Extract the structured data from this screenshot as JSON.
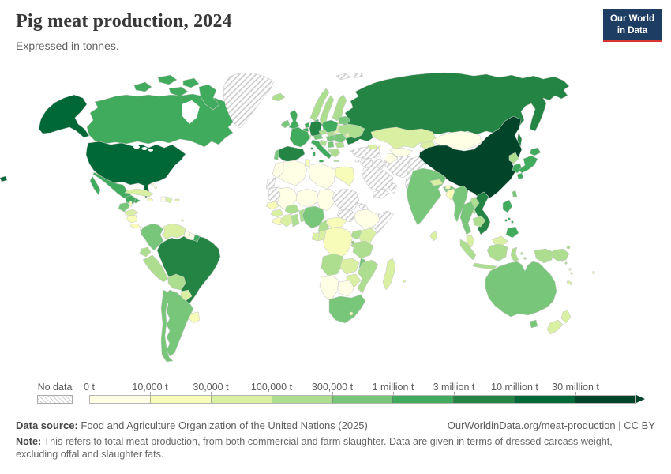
{
  "header": {
    "title": "Pig meat production, 2024",
    "subtitle": "Expressed in tonnes."
  },
  "logo": {
    "line1": "Our World",
    "line2": "in Data",
    "bg_color": "#1d3d63",
    "underline_color": "#d8352e"
  },
  "legend": {
    "no_data_label": "No data"
  },
  "footer": {
    "source_prefix": "Data source:",
    "source_text": "Food and Agriculture Organization of the United Nations (2025)",
    "link_text": "OurWorldinData.org/meat-production | CC BY",
    "note_prefix": "Note:",
    "note_text": "This refers to total meat production, from both commercial and farm slaughter. Data are given in terms of dressed carcass weight, excluding offal and slaughter fats."
  },
  "chart_data": {
    "type": "choropleth",
    "title": "Pig meat production, 2024",
    "unit": "tonnes",
    "bin_edges": [
      "0 t",
      "10,000 t",
      "30,000 t",
      "100,000 t",
      "300,000 t",
      "1 million t",
      "3 million t",
      "10 million t",
      "30 million t"
    ],
    "colors": [
      "#ffffe5",
      "#f7fcb9",
      "#d9f0a3",
      "#addd8e",
      "#78c679",
      "#41ab5d",
      "#238443",
      "#006837",
      "#004529"
    ],
    "no_data_key": "nd",
    "countries": {
      "united-states": 7,
      "canada": 5,
      "greenland": "nd",
      "mexico": 5,
      "guatemala": 4,
      "belize": 1,
      "honduras": 2,
      "nicaragua": 1,
      "costa-rica": 1,
      "panama": 1,
      "cuba": 2,
      "jamaica": 1,
      "haiti": 0,
      "dominican-republic": 2,
      "puerto-rico": 2,
      "bahamas": 1,
      "trinidad-and-tobago": 1,
      "colombia": 4,
      "venezuela": 2,
      "guyana": 0,
      "suriname": 0,
      "french-guiana": 5,
      "ecuador": 3,
      "peru": 3,
      "brazil": 6,
      "bolivia": 3,
      "paraguay": 2,
      "uruguay": 1,
      "argentina": 4,
      "chile": 4,
      "iceland": 3,
      "ireland": 4,
      "united-kingdom": 5,
      "portugal": 4,
      "spain": 6,
      "france": 5,
      "belgium": 5,
      "netherlands": 5,
      "germany": 6,
      "denmark": 5,
      "norway": 3,
      "sweden": 3,
      "finland": 3,
      "estonia": 2,
      "latvia": 2,
      "lithuania": 2,
      "poland": 5,
      "czechia": 3,
      "slovakia": 3,
      "austria": 4,
      "switzerland": 3,
      "hungary": 4,
      "romania": 4,
      "serbia": 4,
      "croatia": 3,
      "albania": 3,
      "greece": 3,
      "bulgaria": 3,
      "moldova": 2,
      "belarus": 4,
      "ukraine": 3,
      "italy": 5,
      "russia": 6,
      "turkey": "nd",
      "cyprus": "nd",
      "syria": "nd",
      "iraq": "nd",
      "saudi-arabia": "nd",
      "yemen": "nd",
      "oman": "nd",
      "iran": "nd",
      "afghanistan": "nd",
      "pakistan": "nd",
      "georgia": 2,
      "azerbaijan": 1,
      "kazakhstan": 2,
      "uzbekistan": 0,
      "turkmenistan": 0,
      "kyrgyzstan": 2,
      "tajikistan": 0,
      "china": 8,
      "mongolia": 0,
      "north-korea": 3,
      "south-korea": 5,
      "japan": 5,
      "taiwan": 4,
      "india": 4,
      "nepal": 2,
      "bhutan": 1,
      "bangladesh": 1,
      "sri-lanka": 2,
      "myanmar": 4,
      "thailand": 4,
      "laos": 3,
      "cambodia": 3,
      "vietnam": 6,
      "malaysia": 2,
      "indonesia": 3,
      "philippines": 5,
      "timor-leste": 2,
      "papua-new-guinea": 3,
      "solomon-islands": 3,
      "vanuatu": 2,
      "new-caledonia": 2,
      "fiji": 1,
      "australia": 4,
      "new-zealand": 2,
      "morocco": 0,
      "western-sahara": "nd",
      "algeria": 0,
      "tunisia": 1,
      "libya": 0,
      "egypt": 1,
      "mauritania": "nd",
      "mali": 0,
      "niger": 0,
      "chad": 0,
      "sudan": "nd",
      "south-sudan": "nd",
      "eritrea": "nd",
      "ethiopia": 0,
      "somalia": "nd",
      "senegal": 1,
      "guinea": 2,
      "sierra-leone": 1,
      "cote-divoire": 2,
      "ghana": 3,
      "burkina-faso": 3,
      "togo-benin": 3,
      "nigeria": 4,
      "cameroon": 3,
      "central-african-republic": 1,
      "dr-congo": 1,
      "congo": 2,
      "gabon": 2,
      "uganda": 3,
      "kenya": 2,
      "rwanda": 4,
      "burundi": 3,
      "tanzania": 3,
      "angola": 3,
      "zambia": 2,
      "malawi": 4,
      "mozambique": 3,
      "zimbabwe": 2,
      "botswana": 0,
      "namibia": 0,
      "south-africa": 4,
      "lesotho": 1,
      "madagascar": 2,
      "mauritius": 2,
      "svalbard": "nd"
    }
  }
}
